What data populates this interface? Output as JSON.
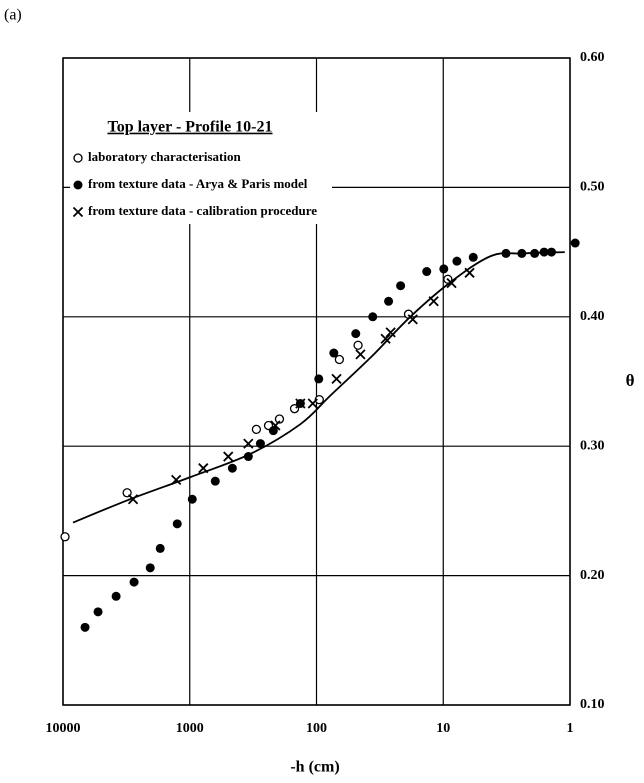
{
  "chart_data": {
    "type": "scatter",
    "panel_label": "(a)",
    "legend_title": "Top layer - Profile 10-21",
    "xlabel": "-h (cm)",
    "ylabel": "θ",
    "xscale": "log",
    "xlim": [
      10000,
      1
    ],
    "xticks": [
      10000,
      1000,
      100,
      10,
      1
    ],
    "ylim": [
      0.1,
      0.6
    ],
    "yticks": [
      {
        "value": 0.1,
        "label": "0.10"
      },
      {
        "value": 0.2,
        "label": "0.20"
      },
      {
        "value": 0.3,
        "label": "0.30"
      },
      {
        "value": 0.4,
        "label": "0.40"
      },
      {
        "value": 0.5,
        "label": "0.50"
      },
      {
        "value": 0.6,
        "label": "0.60"
      }
    ],
    "y_axis_side": "right",
    "grid": true,
    "series": [
      {
        "name": "laboratory characterisation",
        "marker": "open-circle",
        "color": "#000000",
        "x": [
          9640,
          3120,
          298,
          239,
          196,
          149,
          95,
          66,
          47,
          18.8,
          9.2
        ],
        "values": [
          0.23,
          0.264,
          0.313,
          0.316,
          0.321,
          0.329,
          0.336,
          0.367,
          0.378,
          0.402,
          0.429
        ]
      },
      {
        "name": "from texture data - Arya & Paris model",
        "marker": "filled-circle",
        "color": "#000000",
        "x": [
          6700,
          5290,
          3810,
          2750,
          2050,
          1710,
          1255,
          955,
          629,
          461,
          345,
          277,
          219,
          134,
          96,
          73,
          49,
          36,
          27,
          21.7,
          13.5,
          9.9,
          7.8,
          5.8,
          3.2,
          2.4,
          1.9,
          1.6,
          1.4,
          0.91
        ],
        "values": [
          0.16,
          0.172,
          0.184,
          0.195,
          0.206,
          0.221,
          0.24,
          0.259,
          0.273,
          0.283,
          0.292,
          0.302,
          0.312,
          0.333,
          0.352,
          0.372,
          0.387,
          0.4,
          0.412,
          0.424,
          0.435,
          0.437,
          0.443,
          0.446,
          0.449,
          0.449,
          0.449,
          0.45,
          0.45,
          0.457
        ]
      },
      {
        "name": "from texture data - calibration procedure",
        "marker": "x",
        "color": "#000000",
        "x": [
          2800,
          1280,
          782,
          497,
          345,
          211,
          134,
          107,
          69.5,
          45,
          28.5,
          26,
          17.4,
          11.9,
          8.6,
          6.2
        ],
        "values": [
          0.259,
          0.274,
          0.283,
          0.292,
          0.302,
          0.316,
          0.333,
          0.333,
          0.352,
          0.371,
          0.383,
          0.388,
          0.398,
          0.412,
          0.426,
          0.434
        ]
      },
      {
        "marker": "line",
        "color": "#000000",
        "x": [
          8340,
          2960,
          995,
          333,
          134,
          78,
          37,
          18.2,
          8.7,
          4.2,
          2.4,
          1.1
        ],
        "values": [
          0.241,
          0.259,
          0.276,
          0.294,
          0.317,
          0.339,
          0.369,
          0.4,
          0.427,
          0.447,
          0.449,
          0.45
        ]
      }
    ]
  }
}
